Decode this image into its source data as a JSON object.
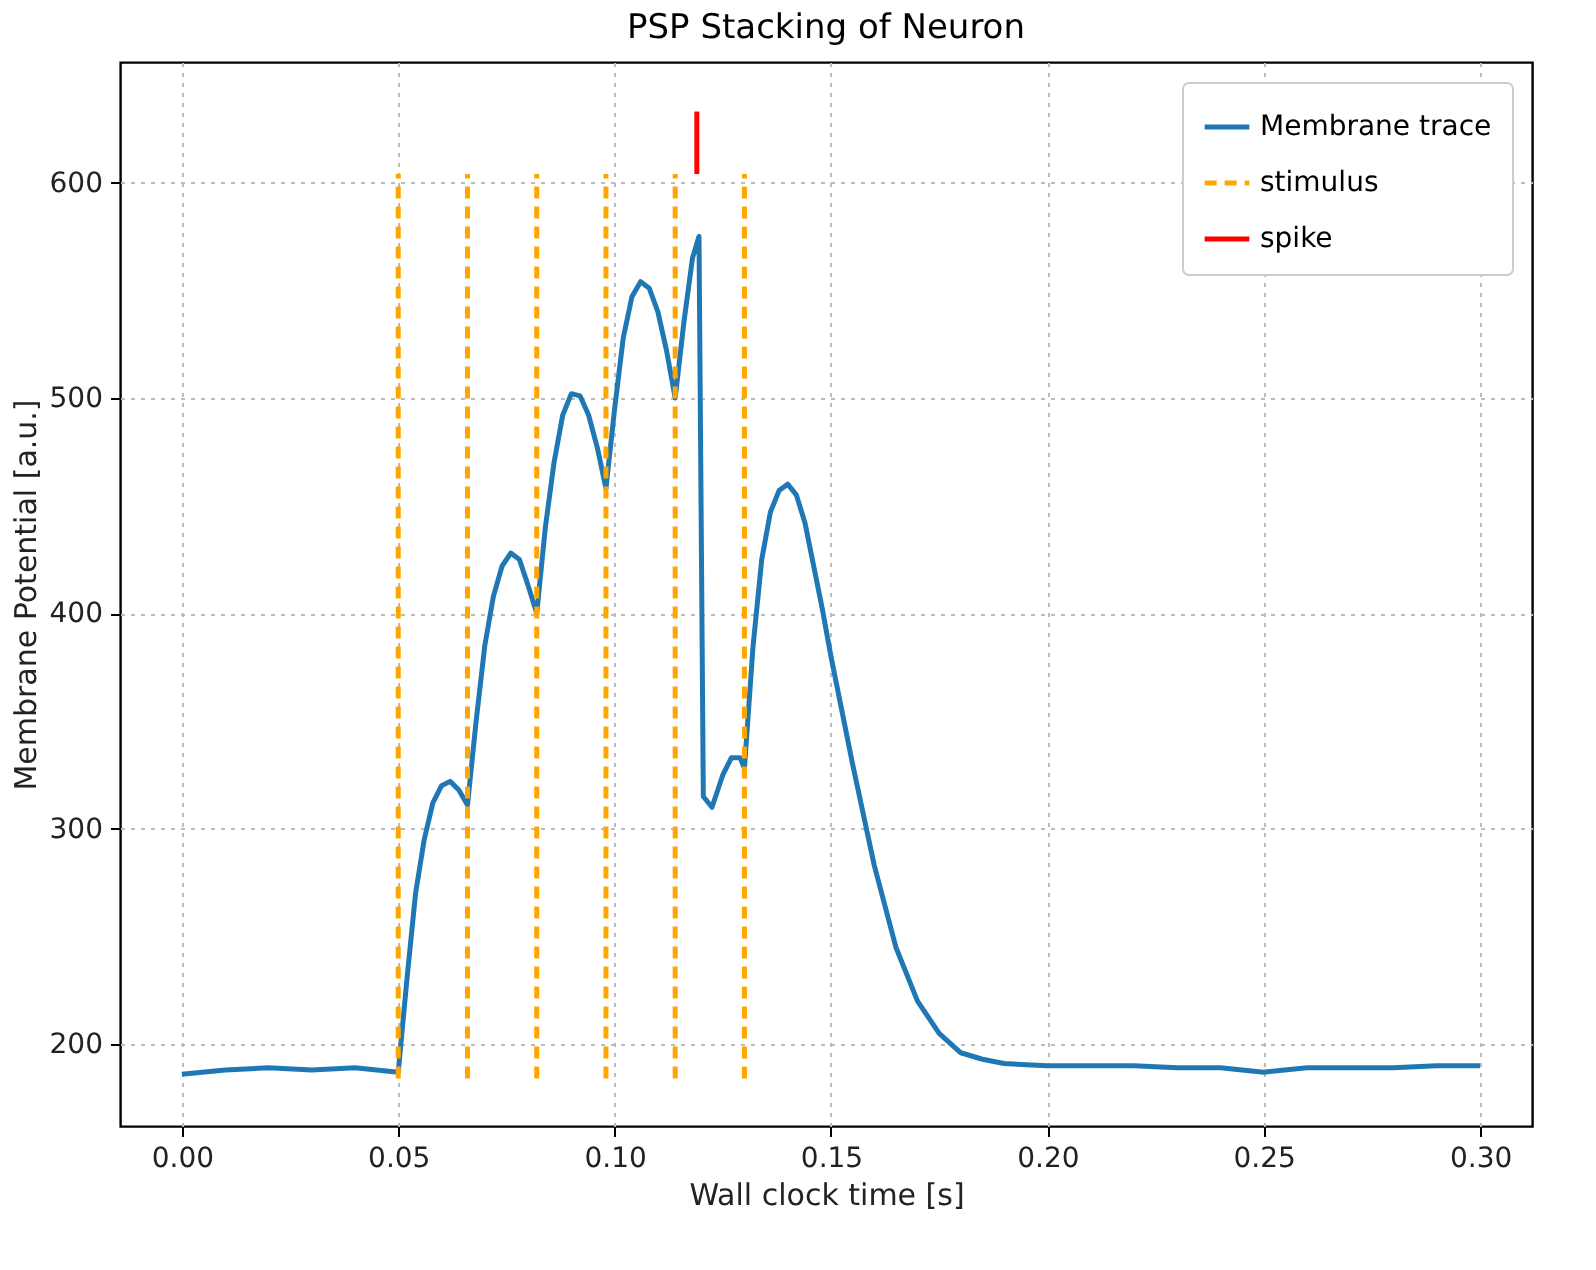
{
  "chart_data": {
    "type": "line",
    "title": "PSP Stacking of Neuron",
    "xlabel": "Wall clock time [s]",
    "ylabel": "Membrane Potential [a.u.]",
    "xlim": [
      -0.0143,
      0.312
    ],
    "ylim": [
      162,
      656
    ],
    "xticks": [
      {
        "value": 0,
        "label": "0.00"
      },
      {
        "value": 0.05,
        "label": "0.05"
      },
      {
        "value": 0.1,
        "label": "0.10"
      },
      {
        "value": 0.15,
        "label": "0.15"
      },
      {
        "value": 0.2,
        "label": "0.20"
      },
      {
        "value": 0.25,
        "label": "0.25"
      },
      {
        "value": 0.3,
        "label": "0.30"
      }
    ],
    "yticks": [
      200,
      300,
      400,
      500,
      600
    ],
    "grid": true,
    "legend": "top right",
    "series": [
      {
        "name": "Membrane trace",
        "color": "#1f77b4",
        "line_style": "solid",
        "x": [
          0,
          0.01,
          0.02,
          0.03,
          0.04,
          0.05,
          0.052,
          0.054,
          0.056,
          0.058,
          0.06,
          0.062,
          0.064,
          0.066,
          0.068,
          0.07,
          0.072,
          0.074,
          0.076,
          0.078,
          0.08,
          0.082,
          0.084,
          0.086,
          0.088,
          0.09,
          0.092,
          0.094,
          0.096,
          0.098,
          0.1,
          0.102,
          0.104,
          0.106,
          0.108,
          0.11,
          0.112,
          0.114,
          0.116,
          0.118,
          0.1195,
          0.1205,
          0.1225,
          0.125,
          0.127,
          0.129,
          0.13,
          0.132,
          0.134,
          0.136,
          0.138,
          0.14,
          0.142,
          0.144,
          0.146,
          0.148,
          0.15,
          0.155,
          0.16,
          0.165,
          0.17,
          0.175,
          0.18,
          0.185,
          0.19,
          0.2,
          0.21,
          0.22,
          0.23,
          0.24,
          0.25,
          0.26,
          0.27,
          0.28,
          0.29,
          0.3
        ],
        "values": [
          186,
          188,
          189,
          188,
          189,
          187,
          230,
          270,
          295,
          312,
          320,
          322,
          318,
          311,
          350,
          385,
          408,
          422,
          428,
          425,
          413,
          400,
          440,
          470,
          492,
          502,
          501,
          492,
          477,
          458,
          495,
          528,
          547,
          554,
          551,
          540,
          522,
          500,
          535,
          565,
          575,
          315,
          310,
          325,
          333,
          333,
          328,
          385,
          425,
          447,
          457,
          460,
          455,
          442,
          422,
          402,
          380,
          330,
          283,
          245,
          220,
          205,
          196,
          193,
          191,
          190,
          190,
          190,
          189,
          189,
          187,
          189,
          189,
          189,
          190,
          190
        ]
      },
      {
        "name": "stimulus",
        "color": "#ffa500",
        "line_style": "dashed",
        "x": [
          0.05,
          0.05,
          0.066,
          0.066,
          0.082,
          0.082,
          0.098,
          0.098,
          0.114,
          0.114,
          0.13,
          0.13
        ],
        "values": [
          184,
          604,
          184,
          604,
          184,
          604,
          184,
          604,
          184,
          604,
          184,
          604
        ]
      },
      {
        "name": "spike",
        "color": "#ff0000",
        "line_style": "solid",
        "x": [
          0.119,
          0.119
        ],
        "values": [
          604,
          633
        ]
      }
    ]
  }
}
